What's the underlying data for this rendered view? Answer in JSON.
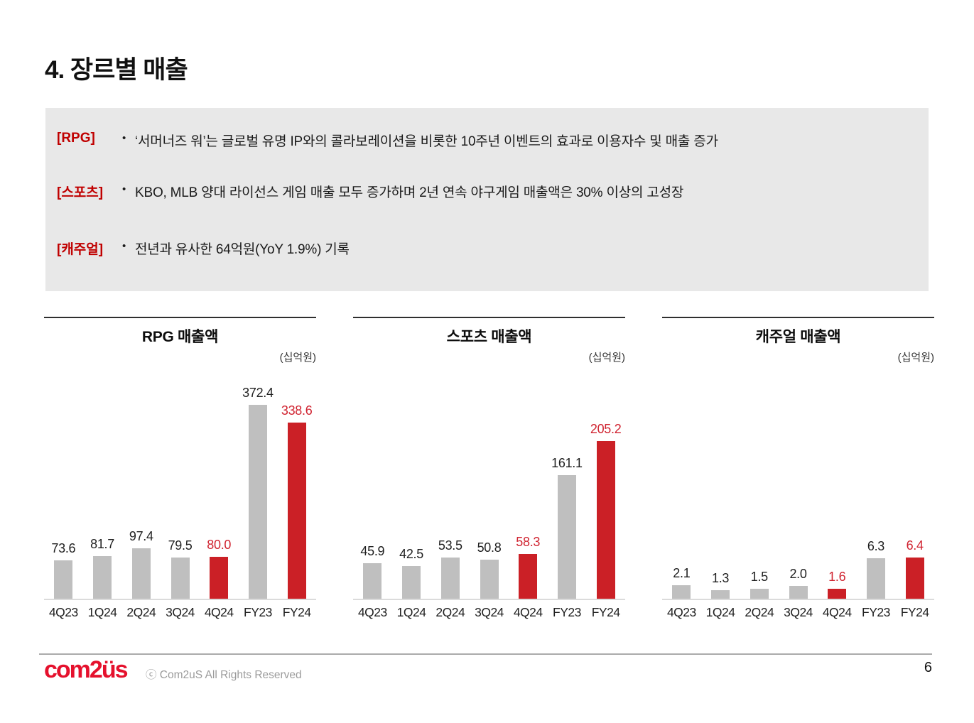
{
  "page": {
    "title": "4. 장르별 매출",
    "page_number": "6"
  },
  "summary": {
    "items": [
      {
        "label": "[RPG]",
        "bullet": "•",
        "text": "‘서머너즈 워’는 글로벌 유명 IP와의 콜라보레이션을 비롯한 10주년 이벤트의 효과로 이용자수 및 매출 증가"
      },
      {
        "label": "[스포츠]",
        "bullet": "•",
        "text": "KBO, MLB 양대 라이선스 게임 매출 모두 증가하며 2년 연속 야구게임 매출액은 30% 이상의 고성장"
      },
      {
        "label": "[캐주얼]",
        "bullet": "•",
        "text": "전년과 유사한 64억원(YoY 1.9%) 기록"
      }
    ]
  },
  "footer": {
    "logo_text": "com2üs",
    "copyright": "ⓒ Com2uS All Rights Reserved"
  },
  "colors": {
    "bar_gray": "#BFBFBF",
    "bar_red": "#CB2026",
    "value_label_red": "#D02330",
    "bracket_red": "#C00000",
    "summary_box_bg": "#E8E8E8",
    "logo_red": "#E5112D"
  },
  "chart_data": [
    {
      "type": "bar",
      "title": "RPG 매출액",
      "unit_label": "(십억원)",
      "categories": [
        "4Q23",
        "1Q24",
        "2Q24",
        "3Q24",
        "4Q24",
        "FY23",
        "FY24"
      ],
      "values": [
        73.6,
        81.7,
        97.4,
        79.5,
        80.0,
        372.4,
        338.6
      ],
      "value_labels": [
        "73.6",
        "81.7",
        "97.4",
        "79.5",
        "80.0",
        "372.4",
        "338.6"
      ],
      "highlight_indices": [
        4,
        6
      ],
      "ylim": [
        0,
        423
      ],
      "grid": false,
      "legend": false
    },
    {
      "type": "bar",
      "title": "스포츠 매출액",
      "unit_label": "(십억원)",
      "categories": [
        "4Q23",
        "1Q24",
        "2Q24",
        "3Q24",
        "4Q24",
        "FY23",
        "FY24"
      ],
      "values": [
        45.9,
        42.5,
        53.5,
        50.8,
        58.3,
        161.1,
        205.2
      ],
      "value_labels": [
        "45.9",
        "42.5",
        "53.5",
        "50.8",
        "58.3",
        "161.1",
        "205.2"
      ],
      "highlight_indices": [
        4,
        6
      ],
      "ylim": [
        0,
        287
      ],
      "grid": false,
      "legend": false
    },
    {
      "type": "bar",
      "title": "캐주얼 매출액",
      "unit_label": "(십억원)",
      "categories": [
        "4Q23",
        "1Q24",
        "2Q24",
        "3Q24",
        "4Q24",
        "FY23",
        "FY24"
      ],
      "values": [
        2.1,
        1.3,
        1.5,
        2.0,
        1.6,
        6.3,
        6.4
      ],
      "value_labels": [
        "2.1",
        "1.3",
        "1.5",
        "2.0",
        "1.6",
        "6.3",
        "6.4"
      ],
      "highlight_indices": [
        4,
        6
      ],
      "ylim": [
        0,
        34.2
      ],
      "grid": false,
      "legend": false
    }
  ]
}
